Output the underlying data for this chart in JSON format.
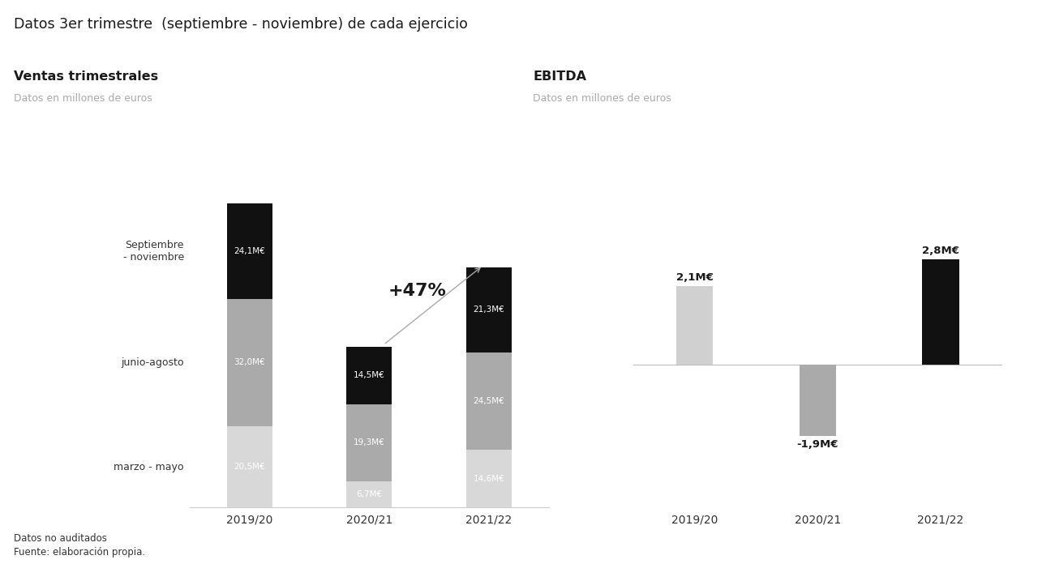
{
  "main_title": "Datos 3er trimestre  (septiembre - noviembre) de cada ejercicio",
  "left_title": "Ventas trimestrales",
  "left_subtitle": "Datos en millones de euros",
  "right_title": "EBITDA",
  "right_subtitle": "Datos en millones de euros",
  "footer_line1": "Datos no auditados",
  "footer_line2": "Fuente: elaboración propia.",
  "ventas_categories": [
    "2019/20",
    "2020/21",
    "2021/22"
  ],
  "ventas_marzo_mayo": [
    20.5,
    6.7,
    14.6
  ],
  "ventas_junio_agosto": [
    32.0,
    19.3,
    24.5
  ],
  "ventas_sep_nov": [
    24.1,
    14.5,
    21.3
  ],
  "ventas_labels_marzo": [
    "20,5M€",
    "6,7M€",
    "14,6M€"
  ],
  "ventas_labels_junio": [
    "32,0M€",
    "19,3M€",
    "24,5M€"
  ],
  "ventas_labels_sep": [
    "24,1M€",
    "14,5M€",
    "21,3M€"
  ],
  "color_light": "#d8d8d8",
  "color_mid": "#aaaaaa",
  "color_black": "#111111",
  "color_white": "#ffffff",
  "ebitda_categories": [
    "2019/20",
    "2020/21",
    "2021/22"
  ],
  "ebitda_values": [
    2.1,
    -1.9,
    2.8
  ],
  "ebitda_labels": [
    "2,1M€",
    "-1,9M€",
    "2,8M€"
  ],
  "ebitda_colors": [
    "#d0d0d0",
    "#aaaaaa",
    "#111111"
  ],
  "annotation_text": "+47%",
  "y_label_marzo": "marzo - mayo",
  "y_label_junio": "junio-agosto",
  "y_label_sep": "Septiembre\n- noviembre",
  "bg_color": "#ffffff"
}
